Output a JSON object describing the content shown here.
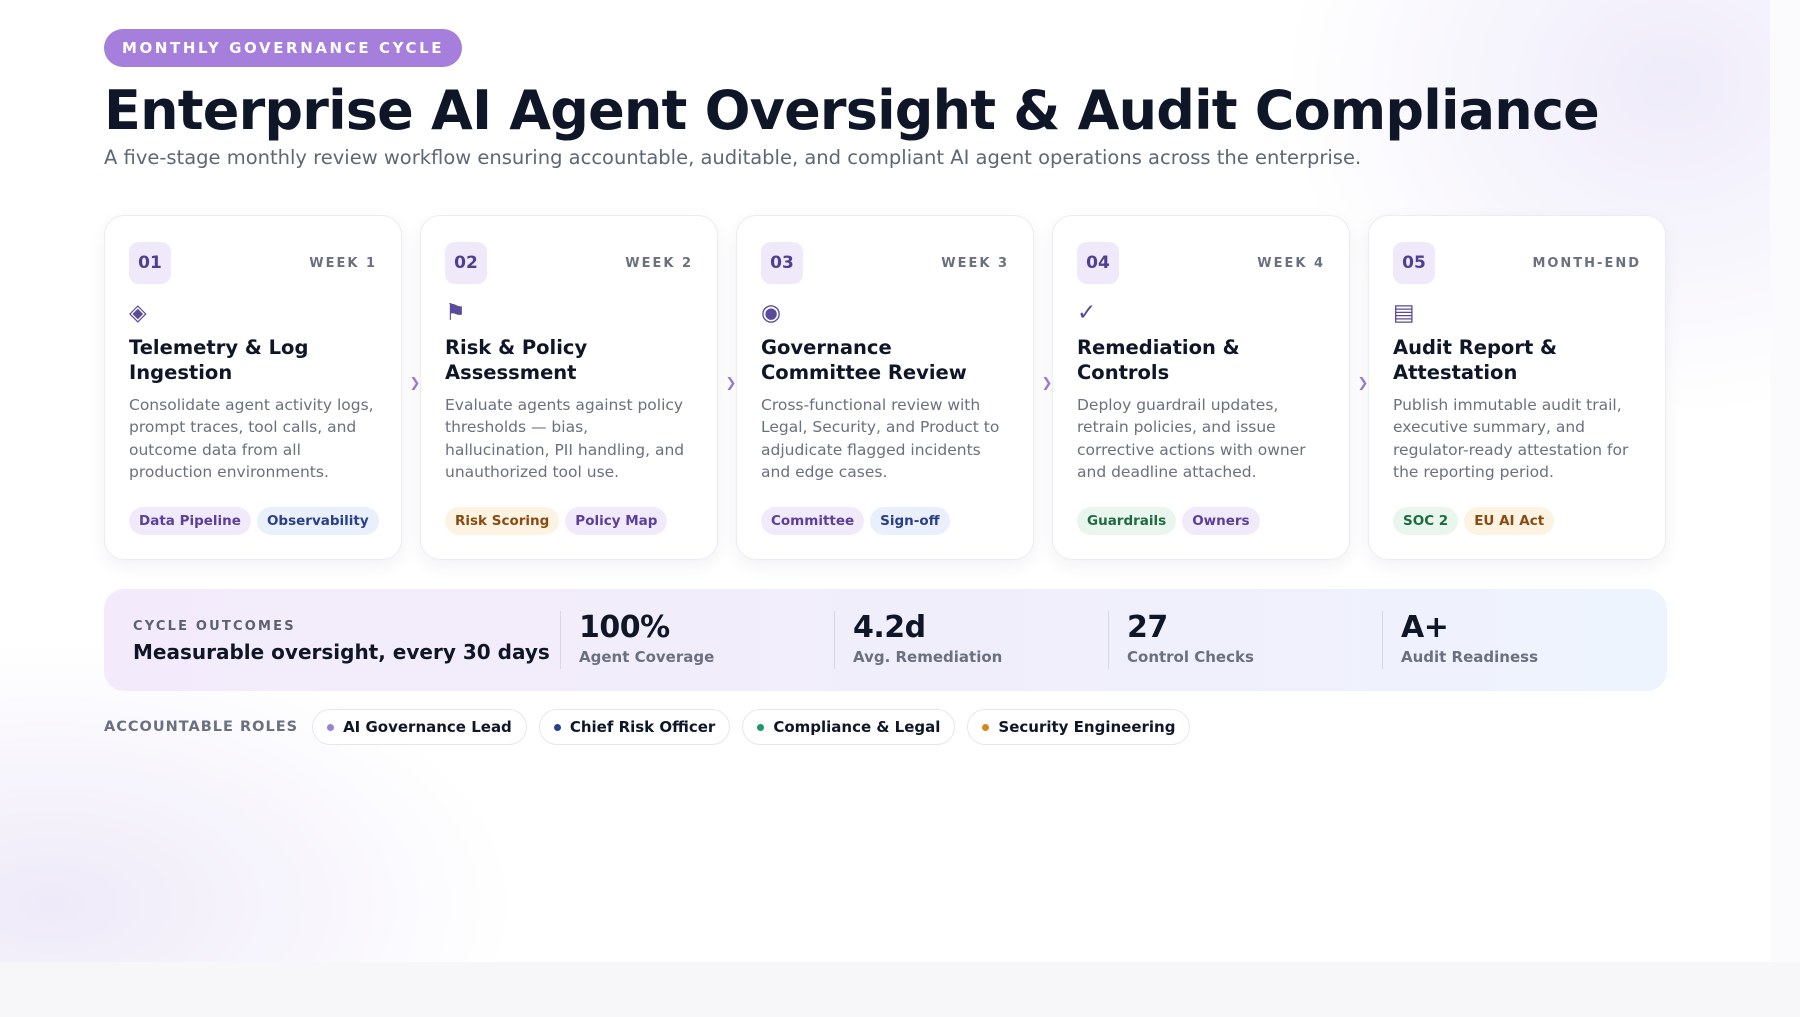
{
  "header": {
    "eyebrow": "MONTHLY GOVERNANCE CYCLE",
    "title": "Enterprise AI Agent Oversight & Audit Compliance",
    "subtitle": "A five-stage monthly review workflow ensuring accountable, auditable, and compliant AI agent operations across the enterprise."
  },
  "stages": [
    {
      "num": "01",
      "period": "WEEK 1",
      "icon": "◈",
      "icon_name": "diamond-icon",
      "title": "Telemetry & Log Ingestion",
      "desc": "Consolidate agent activity logs, prompt traces, tool calls, and outcome data from all production environments.",
      "tags": [
        {
          "label": "Data Pipeline",
          "color": "purple"
        },
        {
          "label": "Observability",
          "color": "blue"
        }
      ]
    },
    {
      "num": "02",
      "period": "WEEK 2",
      "icon": "⚑",
      "icon_name": "flag-icon",
      "title": "Risk & Policy Assessment",
      "desc": "Evaluate agents against policy thresholds — bias, hallucination, PII handling, and unauthorized tool use.",
      "tags": [
        {
          "label": "Risk Scoring",
          "color": "amber"
        },
        {
          "label": "Policy Map",
          "color": "purple"
        }
      ]
    },
    {
      "num": "03",
      "period": "WEEK 3",
      "icon": "◉",
      "icon_name": "target-icon",
      "title": "Governance Committee Review",
      "desc": "Cross-functional review with Legal, Security, and Product to adjudicate flagged incidents and edge cases.",
      "tags": [
        {
          "label": "Committee",
          "color": "purple"
        },
        {
          "label": "Sign-off",
          "color": "blue"
        }
      ]
    },
    {
      "num": "04",
      "period": "WEEK 4",
      "icon": "✓",
      "icon_name": "checkmark-icon",
      "title": "Remediation & Controls",
      "desc": "Deploy guardrail updates, retrain policies, and issue corrective actions with owner and deadline attached.",
      "tags": [
        {
          "label": "Guardrails",
          "color": "green"
        },
        {
          "label": "Owners",
          "color": "purple"
        }
      ]
    },
    {
      "num": "05",
      "period": "MONTH-END",
      "icon": "▤",
      "icon_name": "document-icon",
      "title": "Audit Report & Attestation",
      "desc": "Publish immutable audit trail, executive summary, and regulator-ready attestation for the reporting period.",
      "tags": [
        {
          "label": "SOC 2",
          "color": "green"
        },
        {
          "label": "EU AI Act",
          "color": "amber"
        }
      ]
    }
  ],
  "outcomes": {
    "eyebrow": "CYCLE OUTCOMES",
    "title": "Measurable oversight, every 30 days",
    "metrics": [
      {
        "value": "100%",
        "label": "Agent Coverage"
      },
      {
        "value": "4.2d",
        "label": "Avg. Remediation"
      },
      {
        "value": "27",
        "label": "Control Checks"
      },
      {
        "value": "A+",
        "label": "Audit Readiness"
      }
    ]
  },
  "roles": {
    "label": "ACCOUNTABLE ROLES",
    "items": [
      {
        "label": "AI Governance Lead",
        "color": "#9b7fd6"
      },
      {
        "label": "Chief Risk Officer",
        "color": "#2b3f8f"
      },
      {
        "label": "Compliance & Legal",
        "color": "#1a9a63"
      },
      {
        "label": "Security Engineering",
        "color": "#d9861f"
      }
    ]
  }
}
